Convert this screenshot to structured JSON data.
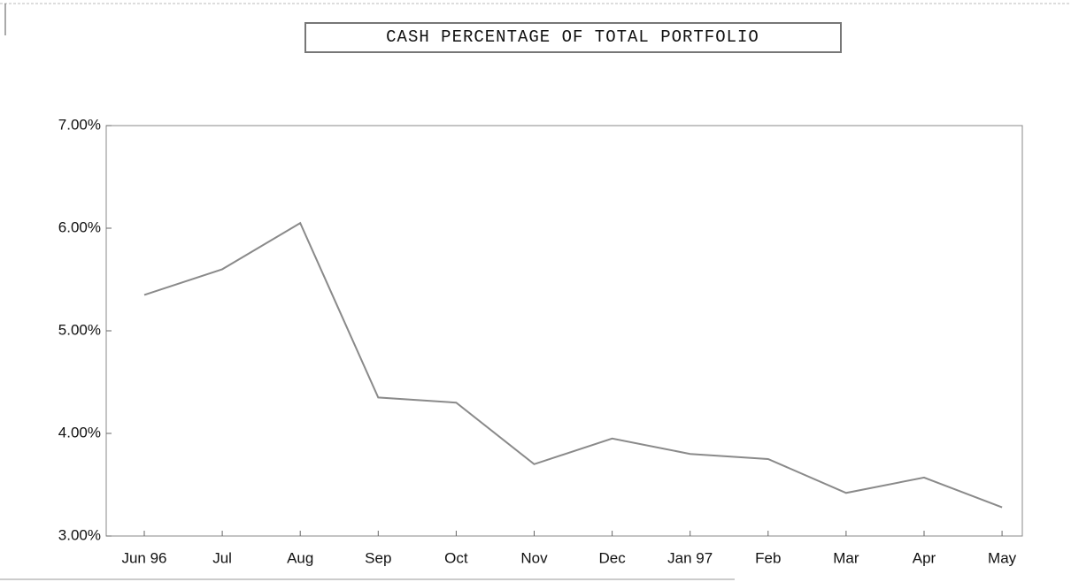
{
  "chart_data": {
    "type": "line",
    "title": "CASH PERCENTAGE OF TOTAL PORTFOLIO",
    "categories": [
      "Jun 96",
      "Jul",
      "Aug",
      "Sep",
      "Oct",
      "Nov",
      "Dec",
      "Jan 97",
      "Feb",
      "Mar",
      "Apr",
      "May"
    ],
    "values": [
      5.35,
      5.6,
      6.05,
      4.35,
      4.3,
      3.7,
      3.95,
      3.8,
      3.75,
      3.42,
      3.57,
      3.28
    ],
    "color": "#8a8a8a",
    "ylim": [
      3,
      7
    ],
    "yticks": [
      {
        "value": 3,
        "label": "3.00%"
      },
      {
        "value": 4,
        "label": "4.00%"
      },
      {
        "value": 5,
        "label": "5.00%"
      },
      {
        "value": 6,
        "label": "6.00%"
      },
      {
        "value": 7,
        "label": "7.00%"
      }
    ]
  }
}
